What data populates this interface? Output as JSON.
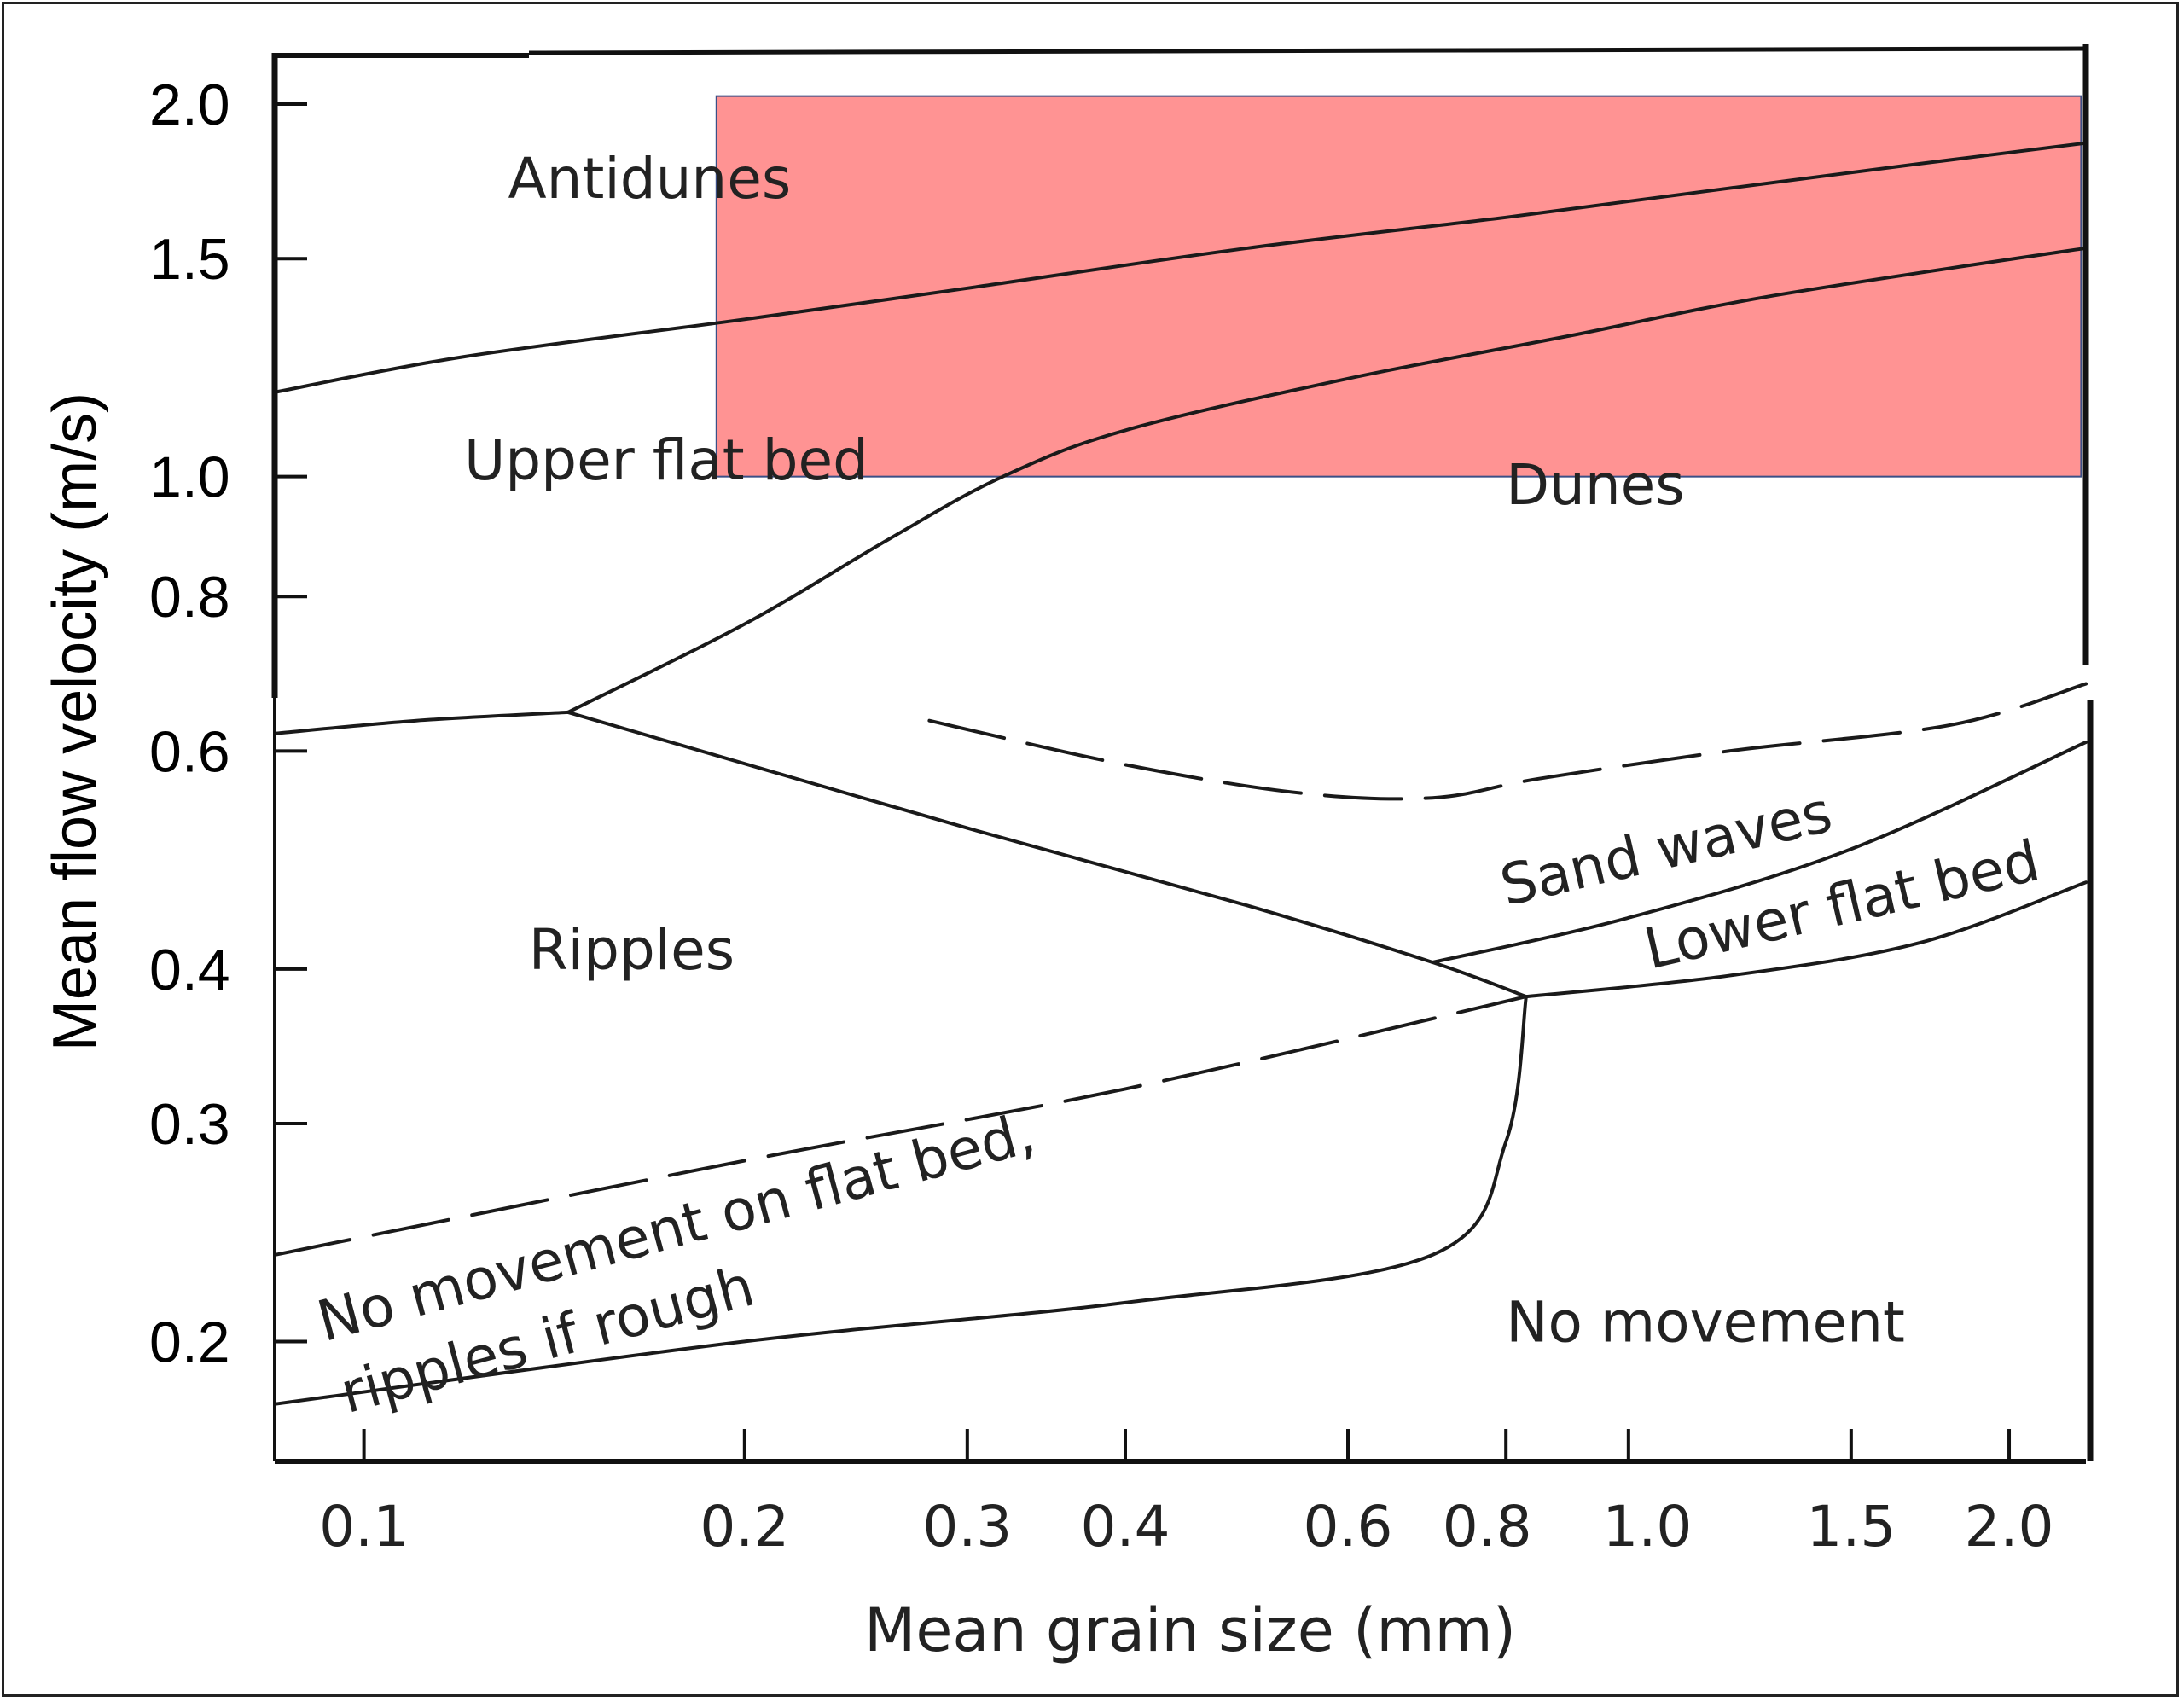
{
  "chart_data": {
    "type": "line",
    "xlabel": "Mean grain size (mm)",
    "ylabel": "Mean flow velocity (m/s)",
    "x_scale": "log",
    "y_scale": "log",
    "xlim": [
      0.085,
      2.3
    ],
    "ylim": [
      0.16,
      2.2
    ],
    "x_ticks": [
      {
        "value": 0.1,
        "label": "0.1"
      },
      {
        "value": 0.2,
        "label": "0.2"
      },
      {
        "value": 0.3,
        "label": "0.3"
      },
      {
        "value": 0.4,
        "label": "0.4"
      },
      {
        "value": 0.6,
        "label": "0.6"
      },
      {
        "value": 0.8,
        "label": "0.8"
      },
      {
        "value": 1.0,
        "label": "1.0"
      },
      {
        "value": 1.5,
        "label": "1.5"
      },
      {
        "value": 2.0,
        "label": "2.0"
      }
    ],
    "y_ticks": [
      {
        "value": 0.2,
        "label": "0.2"
      },
      {
        "value": 0.3,
        "label": "0.3"
      },
      {
        "value": 0.4,
        "label": "0.4"
      },
      {
        "value": 0.6,
        "label": "0.6"
      },
      {
        "value": 0.8,
        "label": "0.8"
      },
      {
        "value": 1.0,
        "label": "1.0"
      },
      {
        "value": 1.5,
        "label": "1.5"
      },
      {
        "value": 2.0,
        "label": "2.0"
      }
    ],
    "boundaries": [
      {
        "id": "antidunes-upper-flat",
        "style": "solid",
        "points": [
          [
            0.085,
            1.17
          ],
          [
            0.12,
            1.25
          ],
          [
            0.2,
            1.34
          ],
          [
            0.3,
            1.42
          ],
          [
            0.5,
            1.53
          ],
          [
            0.8,
            1.62
          ],
          [
            1.2,
            1.71
          ],
          [
            1.7,
            1.79
          ],
          [
            2.3,
            1.86
          ]
        ]
      },
      {
        "id": "upper-flat-dunes",
        "style": "solid",
        "points": [
          [
            0.145,
            0.645
          ],
          [
            0.2,
            0.76
          ],
          [
            0.26,
            0.89
          ],
          [
            0.32,
            1.0
          ],
          [
            0.4,
            1.09
          ],
          [
            0.6,
            1.2
          ],
          [
            0.9,
            1.3
          ],
          [
            1.3,
            1.4
          ],
          [
            2.3,
            1.53
          ]
        ]
      },
      {
        "id": "ripples-upper-flat",
        "style": "solid",
        "points": [
          [
            0.085,
            0.62
          ],
          [
            0.11,
            0.635
          ],
          [
            0.145,
            0.645
          ]
        ]
      },
      {
        "id": "ripples-dunes",
        "style": "solid",
        "points": [
          [
            0.145,
            0.645
          ],
          [
            0.3,
            0.52
          ],
          [
            0.5,
            0.45
          ],
          [
            0.7,
            0.405
          ],
          [
            0.83,
            0.38
          ]
        ]
      },
      {
        "id": "dunes-sand-waves",
        "style": "dashed",
        "points": [
          [
            0.28,
            0.635
          ],
          [
            0.4,
            0.585
          ],
          [
            0.55,
            0.555
          ],
          [
            0.7,
            0.55
          ],
          [
            0.85,
            0.57
          ],
          [
            1.2,
            0.6
          ],
          [
            1.8,
            0.63
          ],
          [
            2.3,
            0.68
          ]
        ]
      },
      {
        "id": "sand-waves-lower-flat",
        "style": "solid",
        "points": [
          [
            0.7,
            0.405
          ],
          [
            1.0,
            0.44
          ],
          [
            1.5,
            0.5
          ],
          [
            2.3,
            0.61
          ]
        ]
      },
      {
        "id": "lower-flat-no-movement",
        "style": "solid",
        "points": [
          [
            0.83,
            0.38
          ],
          [
            1.2,
            0.395
          ],
          [
            1.7,
            0.42
          ],
          [
            2.3,
            0.47
          ]
        ]
      },
      {
        "id": "ripples-no-movement-flat",
        "style": "dashed",
        "points": [
          [
            0.085,
            0.235
          ],
          [
            0.2,
            0.28
          ],
          [
            0.4,
            0.32
          ],
          [
            0.83,
            0.38
          ]
        ]
      },
      {
        "id": "no-movement-flat-no-movement",
        "style": "solid",
        "points": [
          [
            0.085,
            0.178
          ],
          [
            0.2,
            0.2
          ],
          [
            0.4,
            0.215
          ],
          [
            0.7,
            0.235
          ],
          [
            0.8,
            0.29
          ],
          [
            0.83,
            0.38
          ]
        ]
      }
    ],
    "region_labels": [
      {
        "text": "Antidunes",
        "x": 0.13,
        "y": 1.68,
        "angle": 0
      },
      {
        "text": "Upper flat bed",
        "x": 0.12,
        "y": 0.995,
        "angle": 0
      },
      {
        "text": "Dunes",
        "x": 0.8,
        "y": 0.95,
        "angle": 0
      },
      {
        "text": "Ripples",
        "x": 0.135,
        "y": 0.4,
        "angle": 0
      },
      {
        "text": "Sand waves",
        "x": 0.8,
        "y": 0.45,
        "angle": -13
      },
      {
        "text": "Lower flat bed",
        "x": 1.04,
        "y": 0.4,
        "angle": -13
      },
      {
        "text": "No movement",
        "x": 0.8,
        "y": 0.2,
        "angle": 0
      },
      {
        "text": "No movement on flat bed,",
        "x": 0.093,
        "y": 0.2,
        "angle": -15
      },
      {
        "text": "ripples if rough",
        "x": 0.097,
        "y": 0.175,
        "angle": -15
      }
    ],
    "highlight": {
      "x": [
        0.19,
        2.28
      ],
      "y": [
        1.0,
        2.03
      ],
      "color": "#ff8080"
    }
  }
}
